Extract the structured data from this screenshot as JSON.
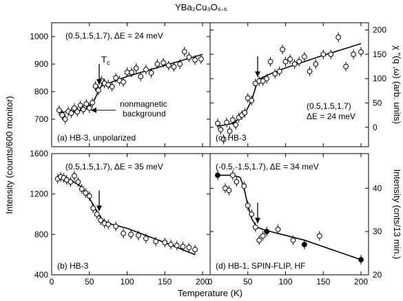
{
  "figure_title": "YBa₂Cu₃O₆.₆",
  "shared": {
    "xlabel": "Temperature (K)",
    "left_ylabel": "Intensity (counts/600 monitor)"
  },
  "colors": {
    "ink": "#000000",
    "open_marker_fill": "#ffffff",
    "filled_marker_fill": "#000000"
  },
  "chart_data": [
    {
      "id": "a",
      "type": "scatter",
      "annotation": "(0.5,1.5,1.7), ΔE = 24 meV",
      "label": "(a) HB-3, unpolarized",
      "tc_label": "T",
      "tc_sub": "c",
      "tc_x": 63,
      "arrow_note_line1": "nonmagnetic",
      "arrow_note_line2": "background",
      "xlim": [
        0,
        210
      ],
      "ylim": [
        600,
        1050
      ],
      "xticks": [
        0,
        50,
        100,
        150,
        200
      ],
      "yticks": [
        700,
        800,
        900,
        1000
      ],
      "ytick_labels": [
        "700",
        "800",
        "900",
        "1000"
      ],
      "x": [
        10,
        14,
        18,
        22,
        26,
        30,
        34,
        38,
        42,
        46,
        50,
        54,
        58,
        62,
        66,
        70,
        75,
        80,
        85,
        90,
        95,
        100,
        106,
        112,
        118,
        125,
        132,
        140,
        148,
        155,
        162,
        170,
        176,
        182,
        190,
        198
      ],
      "y": [
        732,
        715,
        700,
        728,
        722,
        740,
        727,
        750,
        735,
        755,
        740,
        760,
        820,
        805,
        840,
        830,
        825,
        818,
        850,
        840,
        835,
        870,
        870,
        885,
        855,
        880,
        868,
        900,
        905,
        895,
        890,
        900,
        945,
        925,
        915,
        918
      ],
      "fit_x": [
        10,
        30,
        45,
        55,
        60,
        63,
        66,
        75,
        100,
        150,
        200
      ],
      "fit_y": [
        725,
        728,
        735,
        760,
        790,
        810,
        820,
        830,
        855,
        895,
        935
      ]
    },
    {
      "id": "b",
      "type": "scatter",
      "annotation": "(0.5,1.5,1.7), ΔE = 35 meV",
      "label": "(b) HB-3",
      "tc_x": 63,
      "xlim": [
        0,
        210
      ],
      "ylim": [
        400,
        1600
      ],
      "xticks": [
        0,
        50,
        100,
        150,
        200
      ],
      "yticks": [
        400,
        800,
        1200,
        1600
      ],
      "ytick_labels": [
        "400",
        "800",
        "1200",
        "1600"
      ],
      "x": [
        8,
        12,
        16,
        20,
        25,
        30,
        35,
        40,
        45,
        50,
        55,
        60,
        65,
        70,
        75,
        85,
        95,
        105,
        115,
        125,
        138,
        150,
        158,
        166,
        174,
        182,
        190
      ],
      "y": [
        1350,
        1370,
        1360,
        1340,
        1320,
        1380,
        1320,
        1250,
        1210,
        1180,
        1060,
        1000,
        940,
        910,
        900,
        880,
        810,
        800,
        790,
        760,
        730,
        720,
        700,
        690,
        680,
        670,
        650
      ],
      "fit_x": [
        8,
        25,
        40,
        50,
        58,
        63,
        68,
        80,
        100,
        150,
        190
      ],
      "fit_y": [
        1355,
        1340,
        1270,
        1160,
        1050,
        990,
        940,
        900,
        860,
        720,
        600
      ]
    },
    {
      "id": "c",
      "type": "scatter",
      "annotation_line1": "(0.5,1.5,1.7)",
      "annotation_line2": "ΔE = 24 meV",
      "label": "(c) HB-3",
      "tc_x": 63,
      "right_ylabel": "χ \"(q ,ω) (arb. units)",
      "xlim": [
        0,
        210
      ],
      "ylim": [
        -40,
        215
      ],
      "xticks": [
        0,
        50,
        100,
        150,
        200
      ],
      "yticks": [
        0,
        50,
        100,
        150,
        200
      ],
      "ytick_labels": [
        "0",
        "50",
        "100",
        "150",
        "200"
      ],
      "x": [
        10,
        14,
        18,
        22,
        26,
        30,
        34,
        38,
        42,
        46,
        50,
        55,
        60,
        65,
        70,
        75,
        80,
        86,
        92,
        96,
        100,
        106,
        112,
        118,
        125,
        132,
        140,
        150,
        160,
        170,
        180,
        190,
        200
      ],
      "y": [
        8,
        -5,
        -25,
        10,
        -8,
        15,
        5,
        20,
        25,
        30,
        60,
        55,
        90,
        95,
        95,
        100,
        135,
        110,
        115,
        160,
        135,
        140,
        130,
        135,
        145,
        115,
        130,
        150,
        150,
        185,
        125,
        150,
        155
      ],
      "fit_x": [
        10,
        30,
        45,
        55,
        60,
        63,
        66,
        80,
        100,
        150,
        200
      ],
      "fit_y": [
        2,
        8,
        25,
        55,
        80,
        95,
        100,
        110,
        122,
        148,
        172
      ]
    },
    {
      "id": "d",
      "type": "scatter",
      "annotation": "(-0.5,-1.5,1.7), ΔE = 34 meV",
      "label": "(d) HB-1, SPIN-FLIP, HF",
      "tc_x": 63,
      "right_ylabel": "Intensity (cnts/13 min.)",
      "xlim": [
        0,
        210
      ],
      "ylim": [
        20,
        48
      ],
      "xticks": [
        0,
        50,
        100,
        150,
        200
      ],
      "xtick_labels": [
        "0",
        "50",
        "100",
        "150",
        "200"
      ],
      "yticks": [
        20,
        30,
        40
      ],
      "ytick_labels": [
        "20",
        "30",
        "40"
      ],
      "open_x": [
        20,
        25,
        30,
        35,
        45,
        50,
        55,
        60,
        65,
        70,
        90,
        110,
        145
      ],
      "open_y": [
        40,
        39.5,
        43,
        41.5,
        40.5,
        36,
        34,
        31,
        28,
        29,
        30.5,
        28,
        29
      ],
      "filled_x": [
        10,
        75,
        125,
        200
      ],
      "filled_y": [
        43,
        30,
        27,
        23.5
      ],
      "fit_x": [
        10,
        30,
        40,
        45,
        50,
        55,
        62,
        70,
        80,
        125,
        200
      ],
      "fit_y": [
        43,
        43,
        42.5,
        40,
        36,
        33,
        31,
        30.5,
        30,
        28,
        23.5
      ]
    }
  ]
}
